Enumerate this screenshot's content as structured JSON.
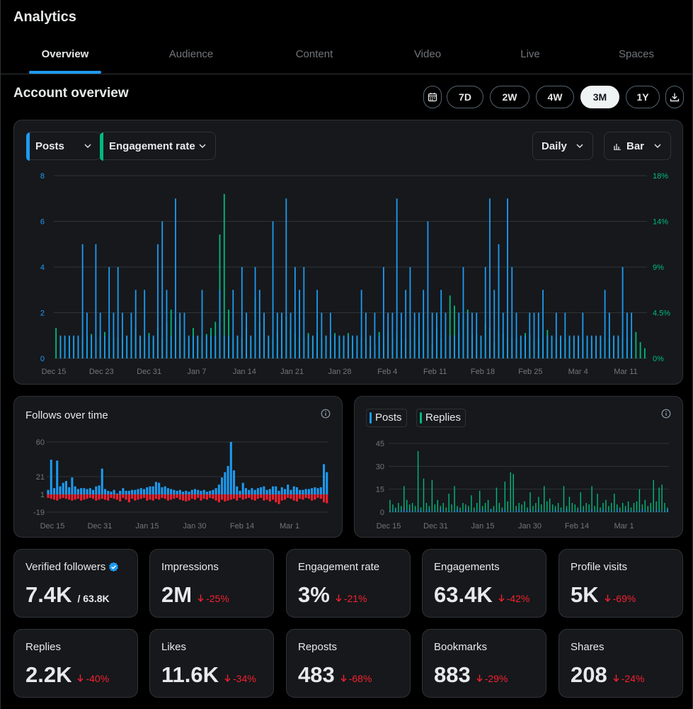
{
  "header": {
    "title": "Analytics"
  },
  "tabs": [
    {
      "label": "Overview",
      "active": true
    },
    {
      "label": "Audience"
    },
    {
      "label": "Content"
    },
    {
      "label": "Video"
    },
    {
      "label": "Live"
    },
    {
      "label": "Spaces"
    }
  ],
  "overview": {
    "title": "Account overview",
    "ranges": [
      "7D",
      "2W",
      "4W",
      "3M",
      "1Y"
    ],
    "active_range": "3M",
    "calendar_icon": "calendar-icon",
    "download_icon": "download-icon"
  },
  "main_chart": {
    "metric1": "Posts",
    "metric2": "Engagement rate",
    "interval": "Daily",
    "chart_type": "Bar",
    "colors": {
      "posts": "#1d9bf0",
      "engagement": "#00ba7c"
    }
  },
  "follows_card": {
    "title": "Follows over time",
    "colors": {
      "gain": "#1d9bf0",
      "loss": "#f4212e"
    }
  },
  "posts_replies_card": {
    "legend_posts": "Posts",
    "legend_replies": "Replies"
  },
  "chart_data": [
    {
      "type": "bar",
      "title": "Account overview",
      "x_ticks": [
        "Dec 15",
        "Dec 23",
        "Dec 31",
        "Jan 7",
        "Jan 14",
        "Jan 21",
        "Jan 28",
        "Feb 4",
        "Feb 11",
        "Feb 18",
        "Feb 25",
        "Mar 4",
        "Mar 11"
      ],
      "y_left_ticks": [
        "0",
        "2",
        "4",
        "6",
        "8"
      ],
      "y_right_ticks": [
        "0%",
        "4.5%",
        "9%",
        "14%",
        "18%"
      ],
      "ylim_left": [
        0,
        8
      ],
      "ylim_right": [
        0,
        18
      ],
      "series": [
        {
          "name": "Posts",
          "axis": "left",
          "values": [
            0,
            1,
            1,
            1,
            1,
            1,
            5,
            2,
            1,
            5,
            2,
            1,
            4,
            2,
            4,
            2,
            1,
            2,
            3,
            1,
            3,
            1,
            1,
            5,
            6,
            3,
            1,
            7,
            2,
            2,
            1,
            1,
            1,
            3,
            1,
            1,
            1,
            3,
            1,
            1,
            3,
            1,
            4,
            2,
            1,
            4,
            3,
            2,
            1,
            6,
            2,
            2,
            7,
            2,
            4,
            3,
            4,
            1,
            1,
            3,
            2,
            1,
            2,
            1,
            1,
            1,
            1,
            1,
            1,
            3,
            2,
            1,
            2,
            1,
            4,
            2,
            2,
            7,
            2,
            3,
            4,
            2,
            2,
            3,
            6,
            2,
            2,
            3,
            2,
            1,
            1,
            2,
            4,
            2,
            2,
            2,
            1,
            4,
            7,
            3,
            5,
            2,
            7,
            4,
            2,
            1,
            1,
            2,
            2,
            2,
            3,
            1,
            1,
            2,
            1,
            2,
            1,
            1,
            1,
            2,
            1,
            1,
            1,
            1,
            3,
            2,
            1,
            1,
            4,
            2,
            2,
            0
          ]
        },
        {
          "name": "Engagement rate",
          "axis": "right",
          "unit": "%",
          "values": [
            3.0,
            2.1,
            2.2,
            2.2,
            2.0,
            2.0,
            2.0,
            2.2,
            2.4,
            2.0,
            2.3,
            2.6,
            2.1,
            2.0,
            2.0,
            2.0,
            2.2,
            3.8,
            3.0,
            2.0,
            2.0,
            2.5,
            2.0,
            3.0,
            2.0,
            3.6,
            4.8,
            4.0,
            3.5,
            2.0,
            2.0,
            3.0,
            2.2,
            2.0,
            2.4,
            3.0,
            3.6,
            12.2,
            16.2,
            4.8,
            2.0,
            2.2,
            2.0,
            3.0,
            2.0,
            6.0,
            3.6,
            4.0,
            2.0,
            2.0,
            2.6,
            3.8,
            4.2,
            3.0,
            2.5,
            2.0,
            2.0,
            2.5,
            2.0,
            2.6,
            2.0,
            2.2,
            2.0,
            2.5,
            2.0,
            2.0,
            2.5,
            2.0,
            2.0,
            2.0,
            2.0,
            1.2,
            1.4,
            2.6,
            2.0,
            2.6,
            2.0,
            2.5,
            2.0,
            2.0,
            2.0,
            3.0,
            2.0,
            4.4,
            2.5,
            1.4,
            3.0,
            2.0,
            2.4,
            6.2,
            5.2,
            2.6,
            4.0,
            4.8,
            2.4,
            2.4,
            2.0,
            3.5,
            3.0,
            1.6,
            2.6,
            2.4,
            2.0,
            2.0,
            2.0,
            2.0,
            2.5,
            2.4,
            1.8,
            2.0,
            2.0,
            2.8,
            2.0,
            2.0,
            2.0,
            2.0,
            2.0,
            2.0,
            2.0,
            2.0,
            2.0,
            2.0,
            2.0,
            2.0,
            2.0,
            2.0,
            2.0,
            2.0,
            2.0,
            2.0,
            2.0,
            2.6,
            1.6,
            1.0
          ]
        }
      ]
    },
    {
      "type": "bar",
      "title": "Follows over time",
      "x_ticks": [
        "Dec 15",
        "Dec 31",
        "Jan 15",
        "Jan 30",
        "Feb 14",
        "Mar 1"
      ],
      "y_ticks": [
        "-19",
        "1",
        "21",
        "60"
      ],
      "ylim": [
        -19,
        60
      ],
      "series": [
        {
          "name": "Gains",
          "values": [
            6,
            40,
            8,
            39,
            10,
            14,
            16,
            9,
            20,
            10,
            7,
            8,
            8,
            7,
            8,
            6,
            10,
            11,
            30,
            7,
            5,
            4,
            6,
            2,
            5,
            8,
            5,
            5,
            6,
            6,
            7,
            8,
            7,
            9,
            10,
            10,
            15,
            14,
            9,
            10,
            8,
            7,
            6,
            5,
            6,
            4,
            5,
            4,
            6,
            7,
            6,
            5,
            6,
            4,
            5,
            6,
            8,
            12,
            20,
            26,
            33,
            60,
            28,
            10,
            5,
            14,
            8,
            6,
            8,
            6,
            8,
            9,
            10,
            6,
            7,
            10,
            10,
            5,
            9,
            7,
            12,
            6,
            10,
            9,
            6,
            6,
            7,
            7,
            8,
            9,
            8,
            9,
            35,
            26
          ]
        },
        {
          "name": "Losses",
          "values": [
            -3,
            -4,
            -5,
            -6,
            -4,
            -3,
            -4,
            -5,
            -6,
            -5,
            -4,
            -6,
            -5,
            -4,
            -3,
            -4,
            -6,
            -5,
            -4,
            -5,
            -6,
            -3,
            -4,
            -5,
            -7,
            -3,
            -5,
            -8,
            -4,
            -6,
            -5,
            -4,
            -3,
            -6,
            -5,
            -6,
            -4,
            -5,
            -3,
            -4,
            -6,
            -5,
            -4,
            -3,
            -5,
            -6,
            -7,
            -6,
            -4,
            -5,
            -3,
            -6,
            -4,
            -5,
            -3,
            -4,
            -6,
            -8,
            -5,
            -7,
            -6,
            -5,
            -4,
            -6,
            -3,
            -5,
            -4,
            -3,
            -5,
            -6,
            -4,
            -3,
            -6,
            -5,
            -7,
            -5,
            -8,
            -10,
            -6,
            -5,
            -3,
            -4,
            -6,
            -7,
            -4,
            -5,
            -3,
            -4,
            -6,
            -5,
            -3,
            -4,
            -8,
            -9
          ]
        }
      ]
    },
    {
      "type": "bar",
      "title": "Posts and replies",
      "x_ticks": [
        "Dec 15",
        "Dec 31",
        "Jan 15",
        "Jan 30",
        "Feb 14",
        "Mar 1"
      ],
      "y_ticks": [
        "0",
        "15",
        "30",
        "45"
      ],
      "ylim": [
        0,
        45
      ],
      "series": [
        {
          "name": "Posts",
          "values": [
            1,
            0,
            2,
            0,
            1,
            3,
            1,
            2,
            1,
            0,
            2,
            1,
            0,
            1,
            2,
            0,
            1,
            0,
            2,
            1,
            0,
            1,
            0,
            1,
            2,
            1,
            0,
            2,
            1,
            0,
            1,
            0,
            2,
            1,
            1,
            0,
            2,
            0,
            1,
            0,
            1,
            2,
            0,
            1,
            0,
            1,
            2,
            1,
            0,
            1,
            2,
            0,
            1,
            2,
            0,
            1,
            0,
            1,
            0,
            2,
            1,
            0,
            1,
            2,
            0,
            1,
            0,
            1,
            2,
            1,
            0,
            1,
            2,
            0,
            1,
            0,
            2,
            1,
            0,
            1,
            0,
            2,
            1,
            0,
            1,
            2,
            0,
            1,
            0,
            1,
            2,
            1,
            0,
            1,
            0,
            2,
            1,
            0,
            1,
            2
          ]
        },
        {
          "name": "Replies",
          "values": [
            8,
            5,
            3,
            6,
            4,
            17,
            8,
            5,
            6,
            4,
            40,
            3,
            22,
            6,
            4,
            21,
            5,
            8,
            4,
            6,
            3,
            12,
            5,
            17,
            4,
            3,
            6,
            5,
            4,
            11,
            3,
            6,
            14,
            4,
            6,
            8,
            2,
            4,
            16,
            6,
            3,
            20,
            7,
            26,
            25,
            4,
            6,
            5,
            7,
            3,
            13,
            4,
            6,
            10,
            5,
            17,
            7,
            9,
            5,
            4,
            6,
            3,
            17,
            4,
            10,
            6,
            5,
            3,
            13,
            4,
            6,
            5,
            17,
            4,
            12,
            3,
            6,
            8,
            4,
            6,
            12,
            5,
            3,
            6,
            4,
            7,
            3,
            6,
            7,
            15,
            5,
            8,
            4,
            6,
            21,
            7,
            16,
            18,
            6,
            3
          ]
        }
      ]
    }
  ],
  "stats": [
    {
      "label": "Verified followers",
      "value": "7.4K",
      "sub": "/ 63.8K",
      "verified": true
    },
    {
      "label": "Impressions",
      "value": "2M",
      "delta": "-25%"
    },
    {
      "label": "Engagement rate",
      "value": "3%",
      "delta": "-21%"
    },
    {
      "label": "Engagements",
      "value": "63.4K",
      "delta": "-42%"
    },
    {
      "label": "Profile visits",
      "value": "5K",
      "delta": "-69%"
    },
    {
      "label": "Replies",
      "value": "2.2K",
      "delta": "-40%"
    },
    {
      "label": "Likes",
      "value": "11.6K",
      "delta": "-34%"
    },
    {
      "label": "Reposts",
      "value": "483",
      "delta": "-68%"
    },
    {
      "label": "Bookmarks",
      "value": "883",
      "delta": "-29%"
    },
    {
      "label": "Shares",
      "value": "208",
      "delta": "-24%"
    }
  ]
}
